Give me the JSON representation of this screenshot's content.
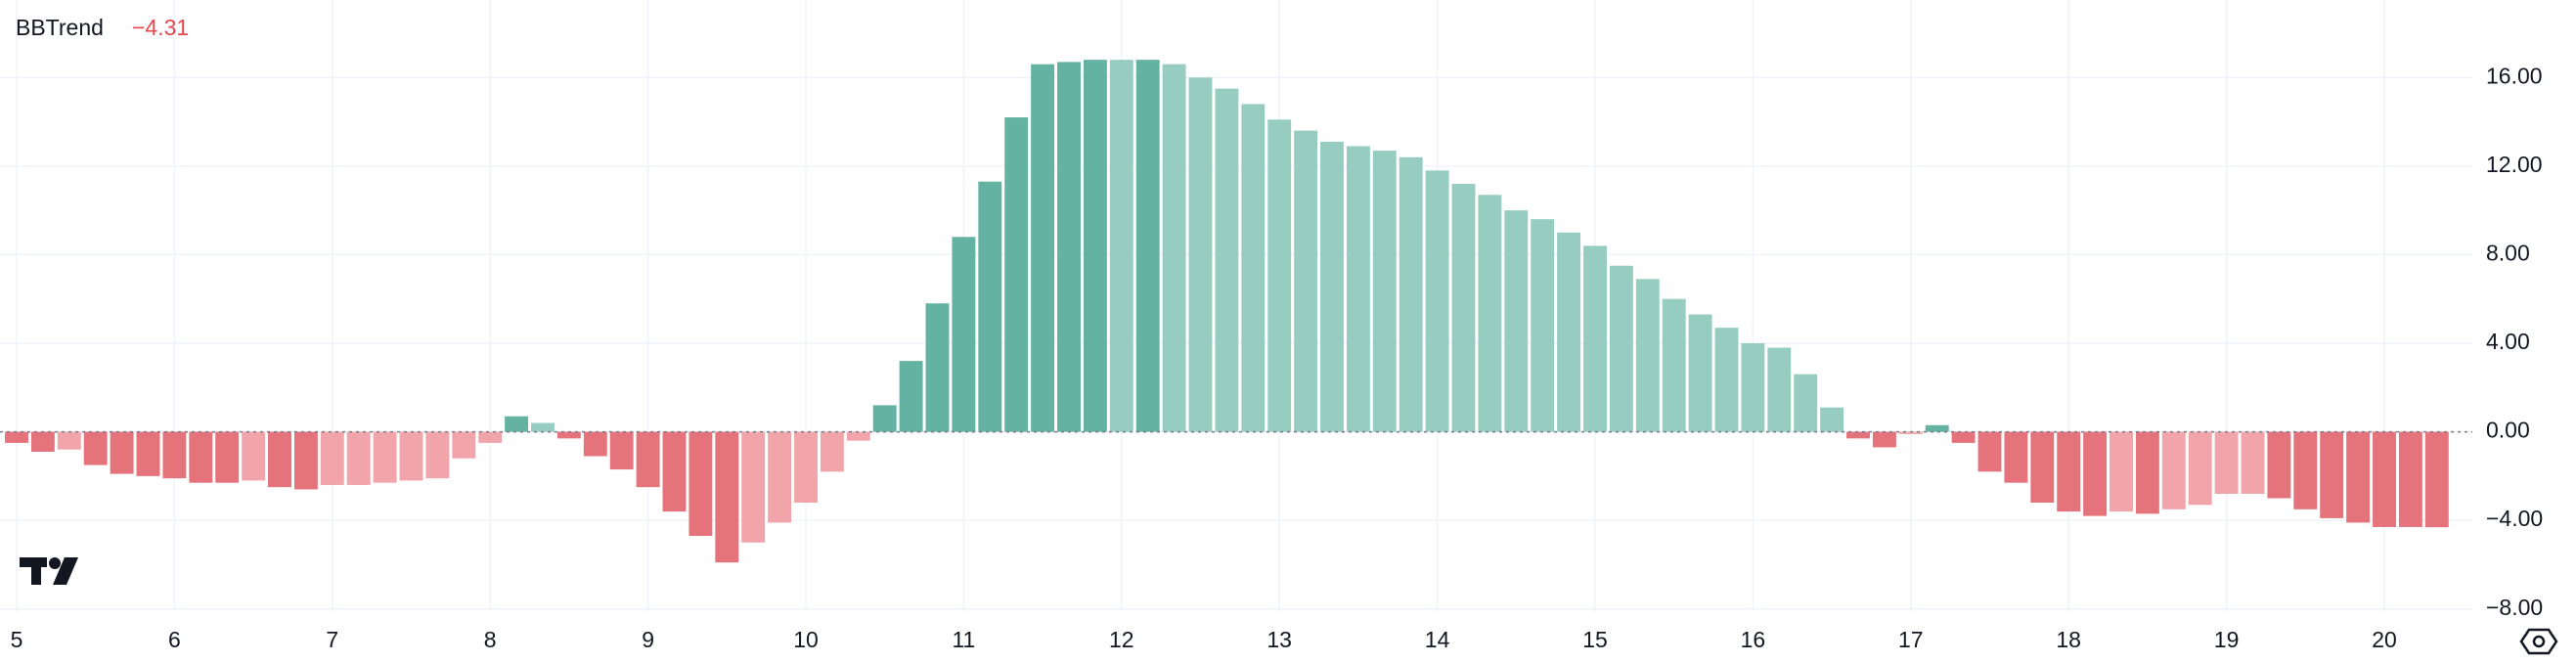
{
  "chart_data": {
    "type": "bar",
    "title": "BBTrend",
    "legend_value": "−4.31",
    "categories": [
      "5",
      null,
      null,
      null,
      null,
      null,
      "6",
      null,
      null,
      null,
      null,
      null,
      "7",
      null,
      null,
      null,
      null,
      null,
      "8",
      null,
      null,
      null,
      null,
      null,
      "9",
      null,
      null,
      null,
      null,
      null,
      "10",
      null,
      null,
      null,
      null,
      null,
      "11",
      null,
      null,
      null,
      null,
      null,
      "12",
      null,
      null,
      null,
      null,
      null,
      "13",
      null,
      null,
      null,
      null,
      null,
      "14",
      null,
      null,
      null,
      null,
      null,
      "15",
      null,
      null,
      null,
      null,
      null,
      "16",
      null,
      null,
      null,
      null,
      null,
      "17",
      null,
      null,
      null,
      null,
      null,
      "18",
      null,
      null,
      null,
      null,
      null,
      "19",
      null,
      null,
      null,
      null,
      null,
      "20",
      null,
      null
    ],
    "values": [
      -0.5,
      -0.9,
      -0.8,
      -1.5,
      -1.9,
      -2.0,
      -2.1,
      -2.3,
      -2.3,
      -2.2,
      -2.5,
      -2.6,
      -2.4,
      -2.4,
      -2.3,
      -2.2,
      -2.1,
      -1.2,
      -0.5,
      0.7,
      0.4,
      -0.3,
      -1.1,
      -1.7,
      -2.5,
      -3.6,
      -4.7,
      -5.9,
      -5.0,
      -4.1,
      -3.2,
      -1.8,
      -0.4,
      1.2,
      3.2,
      5.8,
      8.8,
      11.3,
      14.2,
      16.6,
      16.7,
      16.8,
      16.8,
      16.8,
      16.6,
      16.0,
      15.5,
      14.8,
      14.1,
      13.6,
      13.1,
      12.9,
      12.7,
      12.4,
      11.8,
      11.2,
      10.7,
      10.0,
      9.6,
      9.0,
      8.4,
      7.5,
      6.9,
      6.0,
      5.3,
      4.7,
      4.0,
      3.8,
      2.6,
      1.1,
      -0.3,
      -0.7,
      -0.1,
      0.3,
      -0.5,
      -1.8,
      -2.3,
      -3.2,
      -3.6,
      -3.8,
      -3.6,
      -3.7,
      -3.5,
      -3.3,
      -2.8,
      -2.8,
      -3.0,
      -3.5,
      -3.9,
      -4.1,
      -4.3,
      -4.3,
      -4.31
    ],
    "colors": [
      "#e5737b",
      "#e5737b",
      "#f1a5aa",
      "#e5737b",
      "#e5737b",
      "#e5737b",
      "#e5737b",
      "#e5737b",
      "#e5737b",
      "#f1a5aa",
      "#e5737b",
      "#e5737b",
      "#f1a5aa",
      "#f1a5aa",
      "#f1a5aa",
      "#f1a5aa",
      "#f1a5aa",
      "#f1a5aa",
      "#f1a5aa",
      "#63b2a2",
      "#97cdc1",
      "#e5737b",
      "#e5737b",
      "#e5737b",
      "#e5737b",
      "#e5737b",
      "#e5737b",
      "#e5737b",
      "#f1a5aa",
      "#f1a5aa",
      "#f1a5aa",
      "#f1a5aa",
      "#f1a5aa",
      "#63b2a2",
      "#63b2a2",
      "#63b2a2",
      "#63b2a2",
      "#63b2a2",
      "#63b2a2",
      "#63b2a2",
      "#63b2a2",
      "#63b2a2",
      "#97cdc1",
      "#63b2a2",
      "#97cdc1",
      "#97cdc1",
      "#97cdc1",
      "#97cdc1",
      "#97cdc1",
      "#97cdc1",
      "#97cdc1",
      "#97cdc1",
      "#97cdc1",
      "#97cdc1",
      "#97cdc1",
      "#97cdc1",
      "#97cdc1",
      "#97cdc1",
      "#97cdc1",
      "#97cdc1",
      "#97cdc1",
      "#97cdc1",
      "#97cdc1",
      "#97cdc1",
      "#97cdc1",
      "#97cdc1",
      "#97cdc1",
      "#97cdc1",
      "#97cdc1",
      "#97cdc1",
      "#e5737b",
      "#e5737b",
      "#f1a5aa",
      "#63b2a2",
      "#e5737b",
      "#e5737b",
      "#e5737b",
      "#e5737b",
      "#e5737b",
      "#e5737b",
      "#f1a5aa",
      "#e5737b",
      "#f1a5aa",
      "#f1a5aa",
      "#f1a5aa",
      "#f1a5aa",
      "#e5737b",
      "#e5737b",
      "#e5737b",
      "#e5737b",
      "#e5737b",
      "#e5737b",
      "#e5737b"
    ],
    "ylim": [
      -8.1,
      19.5
    ],
    "yticks": [
      {
        "value": -8,
        "label": "−8.00"
      },
      {
        "value": -4,
        "label": "−4.00"
      },
      {
        "value": 0,
        "label": "0.00"
      },
      {
        "value": 4,
        "label": "4.00"
      },
      {
        "value": 8,
        "label": "8.00"
      },
      {
        "value": 12,
        "label": "12.00"
      },
      {
        "value": 16,
        "label": "16.00"
      }
    ],
    "grid": true
  }
}
